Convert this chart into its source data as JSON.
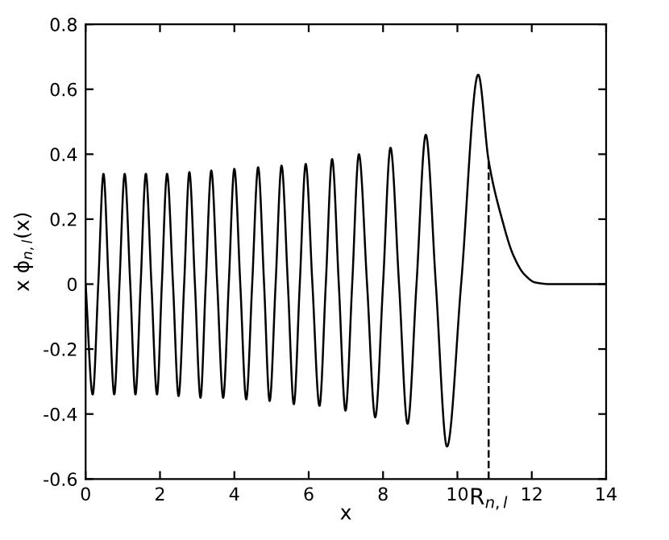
{
  "chart_data": {
    "type": "line",
    "xlabel": "x",
    "ylabel": "x ϕ$_{n,l}$(x)",
    "x": [
      0,
      0.19,
      0.34,
      0.48,
      0.62,
      0.77,
      0.91,
      1.05,
      1.2,
      1.34,
      1.48,
      1.62,
      1.77,
      1.92,
      2.05,
      2.19,
      2.35,
      2.5,
      2.65,
      2.79,
      2.94,
      3.09,
      3.23,
      3.38,
      3.54,
      3.7,
      3.85,
      4.0,
      4.16,
      4.32,
      4.48,
      4.64,
      4.8,
      4.95,
      5.11,
      5.27,
      5.44,
      5.6,
      5.76,
      5.92,
      6.1,
      6.29,
      6.46,
      6.63,
      6.81,
      6.99,
      7.17,
      7.35,
      7.57,
      7.79,
      8.0,
      8.2,
      8.43,
      8.66,
      8.9,
      9.15,
      9.42,
      9.72,
      10.1,
      10.56,
      10.84,
      11.2,
      11.5,
      11.8,
      12.1,
      12.5,
      14
    ],
    "series": [
      {
        "color": "#000000",
        "values": [
          0,
          -0.34,
          0,
          0.34,
          0,
          -0.34,
          0,
          0.34,
          0,
          -0.34,
          0,
          0.34,
          0,
          -0.34,
          0,
          0.34,
          0,
          -0.345,
          0,
          0.345,
          0,
          -0.35,
          0,
          0.35,
          0,
          -0.35,
          0,
          0.355,
          0,
          -0.355,
          0,
          0.36,
          0,
          -0.36,
          0,
          0.365,
          0,
          -0.37,
          0,
          0.37,
          0,
          -0.375,
          0,
          0.385,
          0,
          -0.39,
          0,
          0.4,
          0,
          -0.41,
          0,
          0.42,
          0,
          -0.43,
          0,
          0.46,
          0,
          -0.5,
          0,
          0.645,
          0.38,
          0.2,
          0.09,
          0.03,
          0.005,
          0,
          0
        ]
      }
    ],
    "xlim": [
      0,
      14
    ],
    "ylim": [
      -0.6,
      0.8
    ],
    "xticks": [
      0,
      2,
      4,
      6,
      8,
      10,
      12,
      14
    ],
    "yticks": [
      {
        "value": -0.6,
        "label": "-0.6"
      },
      {
        "value": -0.4,
        "label": "-0.4"
      },
      {
        "value": -0.2,
        "label": "-0.2"
      },
      0,
      {
        "value": 0.2,
        "label": "0.2"
      },
      {
        "value": 0.4,
        "label": "0.4"
      },
      {
        "value": 0.6,
        "label": "0.6"
      },
      {
        "value": 0.8,
        "label": "0.8"
      }
    ],
    "ref_lines": [
      {
        "axis": "x",
        "value": 10.84,
        "label": "R$_{n,l}$",
        "color": "#000000",
        "line_style": "dashed"
      }
    ],
    "grid": false,
    "legend": false,
    "marker": "none",
    "line_style": "solid"
  }
}
